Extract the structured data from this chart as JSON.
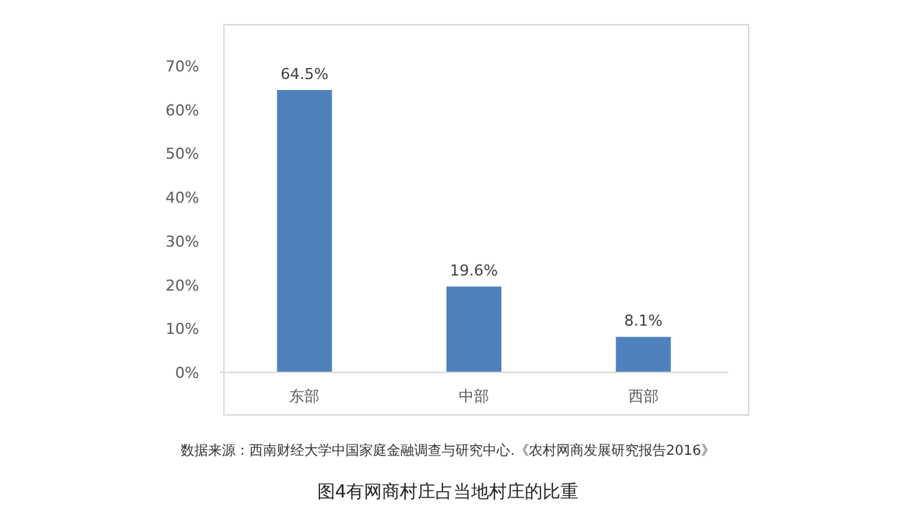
{
  "chart_data": {
    "type": "bar",
    "title": "图4有网商村庄占当地村庄的比重",
    "annotations": [
      "数据来源：西南财经大学中国家庭金融调查与研究中心.《农村网商发展研究报告2016》"
    ],
    "categories": [
      "东部",
      "中部",
      "西部"
    ],
    "values": [
      64.5,
      19.6,
      8.1
    ],
    "value_labels": [
      "64.5%",
      "19.6%",
      "8.1%"
    ],
    "color": "#4f81bd",
    "ylim": [
      0,
      70
    ],
    "yticks": [
      {
        "value": 0,
        "label": "0%"
      },
      {
        "value": 10,
        "label": "10%"
      },
      {
        "value": 20,
        "label": "20%"
      },
      {
        "value": 30,
        "label": "30%"
      },
      {
        "value": 40,
        "label": "40%"
      },
      {
        "value": 50,
        "label": "50%"
      },
      {
        "value": 60,
        "label": "60%"
      },
      {
        "value": 70,
        "label": "70%"
      }
    ]
  }
}
